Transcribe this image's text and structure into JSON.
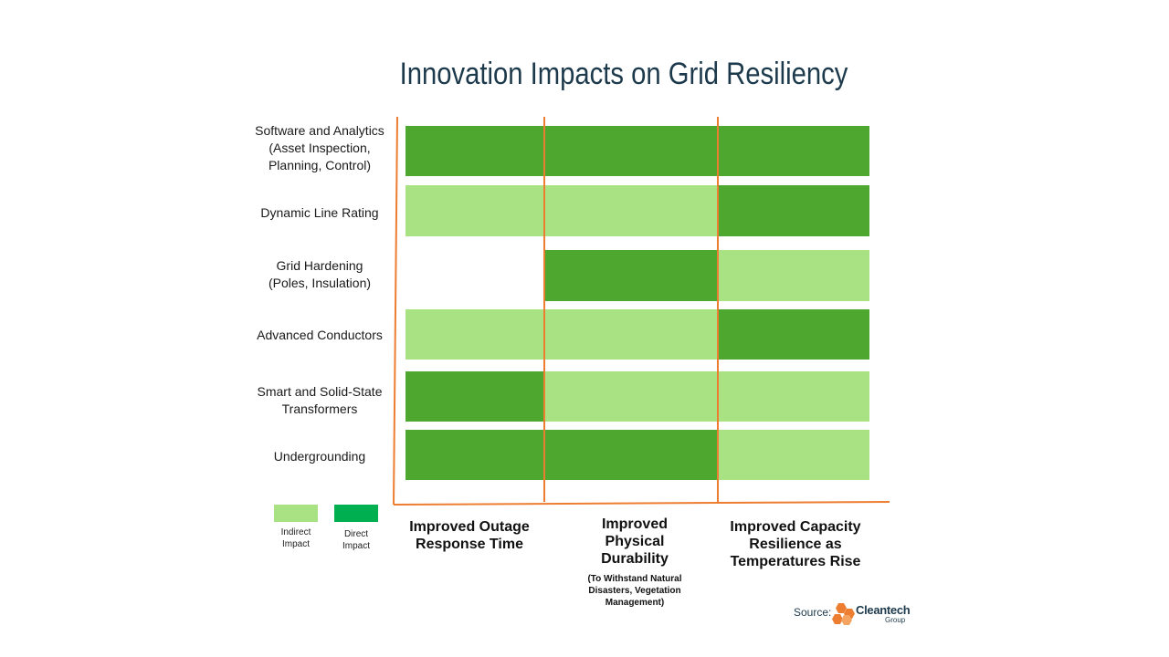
{
  "title": "Innovation Impacts on Grid Resiliency",
  "colors": {
    "direct": "#4ea72f",
    "indirect": "#a8e283",
    "legend_direct": "#00b050",
    "legend_indirect": "#a8e283",
    "axis": "#ed7d31",
    "title": "#1d3a4c"
  },
  "legend": {
    "indirect_label": "Indirect\nImpact",
    "direct_label": "Direct\nImpact"
  },
  "source": {
    "label": "Source:",
    "logo_name": "Cleantech",
    "logo_sub": "Group"
  },
  "chart_data": {
    "type": "table",
    "title": "Innovation Impacts on Grid Resiliency",
    "rows": [
      "Software and Analytics\n(Asset Inspection,\nPlanning, Control)",
      "Dynamic Line Rating",
      "Grid Hardening\n(Poles, Insulation)",
      "Advanced Conductors",
      "Smart and Solid-State\nTransformers",
      "Undergrounding"
    ],
    "columns": [
      {
        "label": "Improved Outage\nResponse Time",
        "sublabel": ""
      },
      {
        "label": "Improved\nPhysical\nDurability",
        "sublabel": "(To Withstand Natural\nDisasters, Vegetation\nManagement)"
      },
      {
        "label": "Improved Capacity\nResilience as\nTemperatures Rise",
        "sublabel": ""
      }
    ],
    "impact": [
      [
        "direct",
        "direct",
        "direct"
      ],
      [
        "indirect",
        "indirect",
        "direct"
      ],
      [
        "none",
        "direct",
        "indirect"
      ],
      [
        "indirect",
        "indirect",
        "direct"
      ],
      [
        "direct",
        "indirect",
        "indirect"
      ],
      [
        "direct",
        "direct",
        "indirect"
      ]
    ],
    "legend": [
      "Indirect Impact",
      "Direct Impact"
    ]
  }
}
